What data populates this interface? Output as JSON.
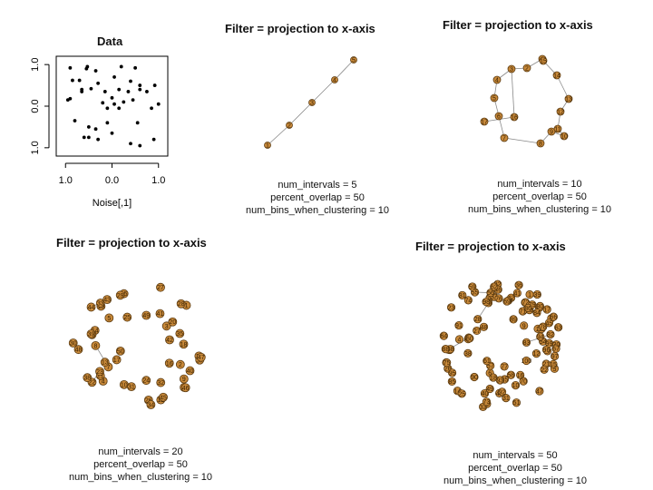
{
  "scatter": {
    "title": "Data",
    "xlabel": "Noise[,1]",
    "ylabel": "",
    "xticks": [
      "1.0",
      "0.0",
      "1.0"
    ],
    "yticks": [
      "1.0",
      "0.0",
      "1.0"
    ],
    "xlim": [
      -1.2,
      1.2
    ],
    "ylim": [
      -1.2,
      1.2
    ],
    "points": [
      [
        -0.9,
        0.92
      ],
      [
        -0.55,
        0.9
      ],
      [
        -0.53,
        0.95
      ],
      [
        -0.35,
        0.85
      ],
      [
        0.2,
        0.95
      ],
      [
        0.5,
        0.92
      ],
      [
        -0.85,
        0.62
      ],
      [
        -0.7,
        0.62
      ],
      [
        -0.65,
        0.4
      ],
      [
        -0.45,
        0.42
      ],
      [
        -0.3,
        0.55
      ],
      [
        0.05,
        0.7
      ],
      [
        0.4,
        0.6
      ],
      [
        0.6,
        0.5
      ],
      [
        -0.95,
        0.15
      ],
      [
        -0.9,
        0.18
      ],
      [
        -0.65,
        0.35
      ],
      [
        -0.15,
        0.35
      ],
      [
        0.0,
        0.2
      ],
      [
        0.15,
        0.4
      ],
      [
        0.35,
        0.35
      ],
      [
        0.6,
        0.4
      ],
      [
        0.75,
        0.35
      ],
      [
        0.92,
        0.5
      ],
      [
        -0.2,
        0.08
      ],
      [
        -0.1,
        -0.05
      ],
      [
        0.05,
        0.05
      ],
      [
        0.25,
        0.1
      ],
      [
        0.45,
        0.15
      ],
      [
        -0.8,
        -0.35
      ],
      [
        -0.5,
        -0.5
      ],
      [
        -0.35,
        -0.55
      ],
      [
        -0.1,
        -0.4
      ],
      [
        0.15,
        -0.05
      ],
      [
        0.55,
        -0.4
      ],
      [
        0.85,
        -0.05
      ],
      [
        -0.6,
        -0.75
      ],
      [
        -0.3,
        -0.8
      ],
      [
        0.0,
        -0.65
      ],
      [
        0.4,
        -0.9
      ],
      [
        0.6,
        -0.95
      ],
      [
        0.9,
        -0.8
      ],
      [
        -0.5,
        -0.75
      ],
      [
        1.0,
        0.05
      ]
    ]
  },
  "graphs": [
    {
      "title": "Filter = projection to x-axis",
      "params": [
        "num_intervals =  5",
        "percent_overlap =  50",
        "num_bins_when_clustering = 10"
      ],
      "labels": [
        "1",
        "2",
        "3",
        "4",
        "5"
      ],
      "edges": [
        [
          0,
          1
        ],
        [
          1,
          2
        ],
        [
          2,
          3
        ],
        [
          3,
          4
        ]
      ]
    },
    {
      "title": "Filter = projection to x-axis",
      "params": [
        "num_intervals =  10",
        "percent_overlap =  50",
        "num_bins_when_clustering = 10"
      ],
      "labels": [
        "1",
        "2",
        "3",
        "4",
        "5",
        "6",
        "7",
        "8",
        "9",
        "10",
        "11",
        "12",
        "13",
        "14",
        "15",
        "16",
        "17"
      ],
      "edges": [
        [
          0,
          1
        ],
        [
          1,
          2
        ],
        [
          2,
          3
        ],
        [
          3,
          4
        ],
        [
          4,
          5
        ],
        [
          5,
          6
        ],
        [
          6,
          7
        ],
        [
          7,
          8
        ],
        [
          8,
          9
        ],
        [
          9,
          10
        ],
        [
          10,
          11
        ],
        [
          11,
          12
        ],
        [
          12,
          13
        ],
        [
          13,
          14
        ],
        [
          2,
          15
        ],
        [
          15,
          16
        ]
      ]
    },
    {
      "title": "Filter = projection to x-axis",
      "params": [
        "num_intervals =  20",
        "percent_overlap =  50",
        "num_bins_when_clustering = 10"
      ],
      "count": 50
    },
    {
      "title": "Filter = projection to x-axis",
      "params": [
        "num_intervals =  50",
        "percent_overlap =  50",
        "num_bins_when_clustering = 10"
      ],
      "count": 100
    }
  ],
  "colors": {
    "node": "#c8893a",
    "node_stroke": "#5a3a10",
    "edge": "#888888",
    "point": "#000000"
  }
}
